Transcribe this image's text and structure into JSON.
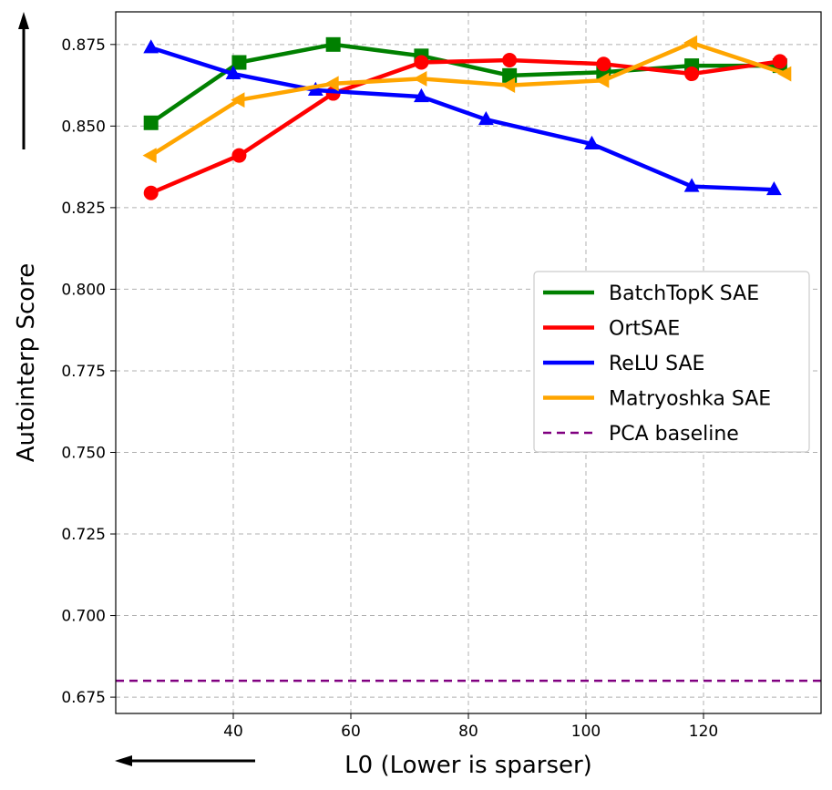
{
  "chart_data": {
    "type": "line",
    "title": "",
    "xlabel": "L0 (Lower is sparser)",
    "ylabel": "Autointerp Score",
    "xlim": [
      20,
      140
    ],
    "ylim": [
      0.67,
      0.885
    ],
    "x_ticks": [
      40,
      60,
      80,
      100,
      120
    ],
    "y_ticks": [
      0.675,
      0.7,
      0.725,
      0.75,
      0.775,
      0.8,
      0.825,
      0.85,
      0.875
    ],
    "x_tick_labels": [
      "40",
      "60",
      "80",
      "100",
      "120"
    ],
    "y_tick_labels": [
      "0.675",
      "0.700",
      "0.725",
      "0.750",
      "0.775",
      "0.800",
      "0.825",
      "0.850",
      "0.875"
    ],
    "grid": true,
    "legend_position": "center-right",
    "series": [
      {
        "name": "BatchTopK SAE",
        "color": "#008000",
        "marker": "square",
        "x": [
          26,
          41,
          57,
          72,
          87,
          103,
          118,
          133
        ],
        "y": [
          0.851,
          0.8695,
          0.875,
          0.8715,
          0.8655,
          0.8665,
          0.8685,
          0.8685
        ]
      },
      {
        "name": "OrtSAE",
        "color": "#ff0000",
        "marker": "circle",
        "x": [
          26,
          41,
          57,
          72,
          87,
          103,
          118,
          133
        ],
        "y": [
          0.8295,
          0.841,
          0.86,
          0.8695,
          0.8702,
          0.869,
          0.866,
          0.8698
        ]
      },
      {
        "name": "ReLU SAE",
        "color": "#0000ff",
        "marker": "triangle",
        "x": [
          26,
          40,
          54,
          72,
          83,
          101,
          118,
          132
        ],
        "y": [
          0.874,
          0.866,
          0.861,
          0.859,
          0.852,
          0.8445,
          0.8315,
          0.8305
        ]
      },
      {
        "name": "Matryoshka SAE",
        "color": "#ffa500",
        "marker": "triangle-left",
        "x": [
          26,
          41,
          57,
          72,
          87,
          103,
          118,
          134
        ],
        "y": [
          0.841,
          0.858,
          0.863,
          0.8645,
          0.8625,
          0.864,
          0.8755,
          0.866
        ]
      }
    ],
    "baselines": [
      {
        "name": "PCA baseline",
        "color": "#800080",
        "style": "dashed",
        "y": 0.68
      }
    ]
  }
}
